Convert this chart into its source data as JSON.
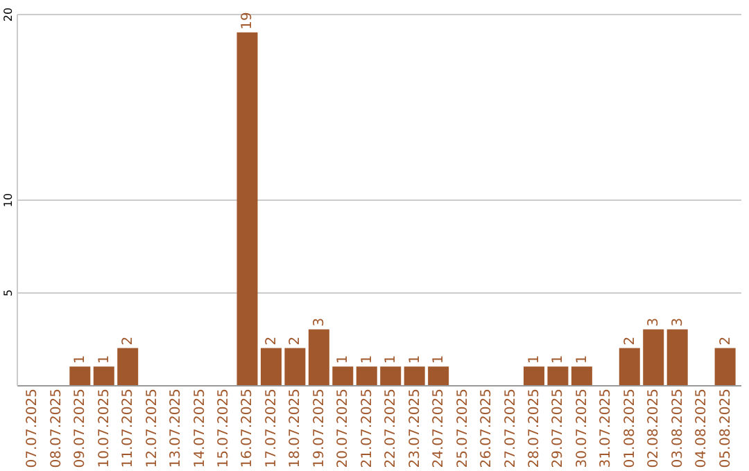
{
  "chart_data": {
    "type": "bar",
    "categories": [
      "07.07.2025",
      "08.07.2025",
      "09.07.2025",
      "10.07.2025",
      "11.07.2025",
      "12.07.2025",
      "13.07.2025",
      "14.07.2025",
      "15.07.2025",
      "16.07.2025",
      "17.07.2025",
      "18.07.2025",
      "19.07.2025",
      "20.07.2025",
      "21.07.2025",
      "22.07.2025",
      "23.07.2025",
      "24.07.2025",
      "25.07.2025",
      "26.07.2025",
      "27.07.2025",
      "28.07.2025",
      "29.07.2025",
      "30.07.2025",
      "31.07.2025",
      "01.08.2025",
      "02.08.2025",
      "03.08.2025",
      "04.08.2025",
      "05.08.2025"
    ],
    "values": [
      null,
      null,
      1,
      1,
      2,
      null,
      null,
      null,
      null,
      19,
      2,
      2,
      3,
      1,
      1,
      1,
      1,
      1,
      null,
      null,
      null,
      1,
      1,
      1,
      null,
      2,
      3,
      3,
      null,
      2
    ],
    "color": "#a0582c",
    "ylim": [
      0,
      20
    ],
    "yticks": [
      5,
      10,
      20
    ],
    "grid": "y",
    "data_labels": true
  }
}
